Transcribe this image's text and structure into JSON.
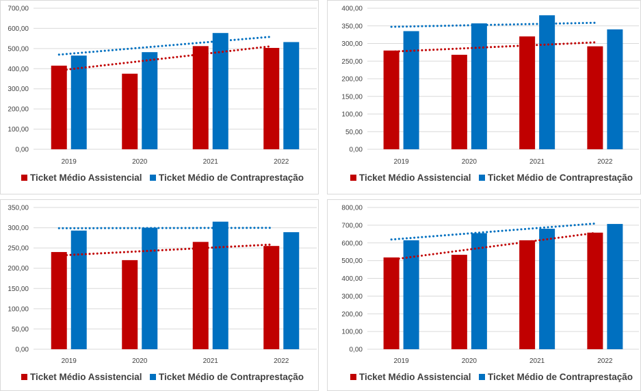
{
  "colors": {
    "assistencial": "#c00000",
    "contraprestacao": "#0070c0",
    "grid": "#d9d9d9",
    "text": "#404040"
  },
  "legend": {
    "assistencial": "Ticket Médio Assistencial",
    "contraprestacao": "Ticket Médio de Contraprestação"
  },
  "chart_data": [
    {
      "type": "bar",
      "categories": [
        "2019",
        "2020",
        "2021",
        "2022"
      ],
      "series": [
        {
          "name": "Ticket Médio Assistencial",
          "values": [
            415,
            375,
            512,
            503
          ]
        },
        {
          "name": "Ticket Médio de Contraprestação",
          "values": [
            465,
            482,
            577,
            532
          ]
        }
      ],
      "ylim": [
        0,
        700
      ],
      "ystep": 100,
      "ytick_labels": [
        "0,00",
        "100,00",
        "200,00",
        "300,00",
        "400,00",
        "500,00",
        "600,00",
        "700,00"
      ],
      "trendlines": true,
      "grid": true,
      "legend_position": "bottom"
    },
    {
      "type": "bar",
      "categories": [
        "2019",
        "2020",
        "2021",
        "2022"
      ],
      "series": [
        {
          "name": "Ticket Médio Assistencial",
          "values": [
            280,
            268,
            320,
            292
          ]
        },
        {
          "name": "Ticket Médio de Contraprestação",
          "values": [
            335,
            357,
            380,
            340
          ]
        }
      ],
      "ylim": [
        0,
        400
      ],
      "ystep": 50,
      "ytick_labels": [
        "0,00",
        "50,00",
        "100,00",
        "150,00",
        "200,00",
        "250,00",
        "300,00",
        "350,00",
        "400,00"
      ],
      "trendlines": true,
      "grid": true,
      "legend_position": "bottom"
    },
    {
      "type": "bar",
      "categories": [
        "2019",
        "2020",
        "2021",
        "2022"
      ],
      "series": [
        {
          "name": "Ticket Médio Assistencial",
          "values": [
            240,
            220,
            265,
            255
          ]
        },
        {
          "name": "Ticket Médio de Contraprestação",
          "values": [
            293,
            300,
            315,
            289
          ]
        }
      ],
      "ylim": [
        0,
        350
      ],
      "ystep": 50,
      "ytick_labels": [
        "0,00",
        "50,00",
        "100,00",
        "150,00",
        "200,00",
        "250,00",
        "300,00",
        "350,00"
      ],
      "trendlines": true,
      "grid": true,
      "legend_position": "bottom"
    },
    {
      "type": "bar",
      "categories": [
        "2019",
        "2020",
        "2021",
        "2022"
      ],
      "series": [
        {
          "name": "Ticket Médio Assistencial",
          "values": [
            518,
            533,
            615,
            658
          ]
        },
        {
          "name": "Ticket Médio de Contraprestação",
          "values": [
            615,
            655,
            680,
            707
          ]
        }
      ],
      "ylim": [
        0,
        800
      ],
      "ystep": 100,
      "ytick_labels": [
        "0,00",
        "100,00",
        "200,00",
        "300,00",
        "400,00",
        "500,00",
        "600,00",
        "700,00",
        "800,00"
      ],
      "trendlines": true,
      "grid": true,
      "legend_position": "bottom"
    }
  ]
}
